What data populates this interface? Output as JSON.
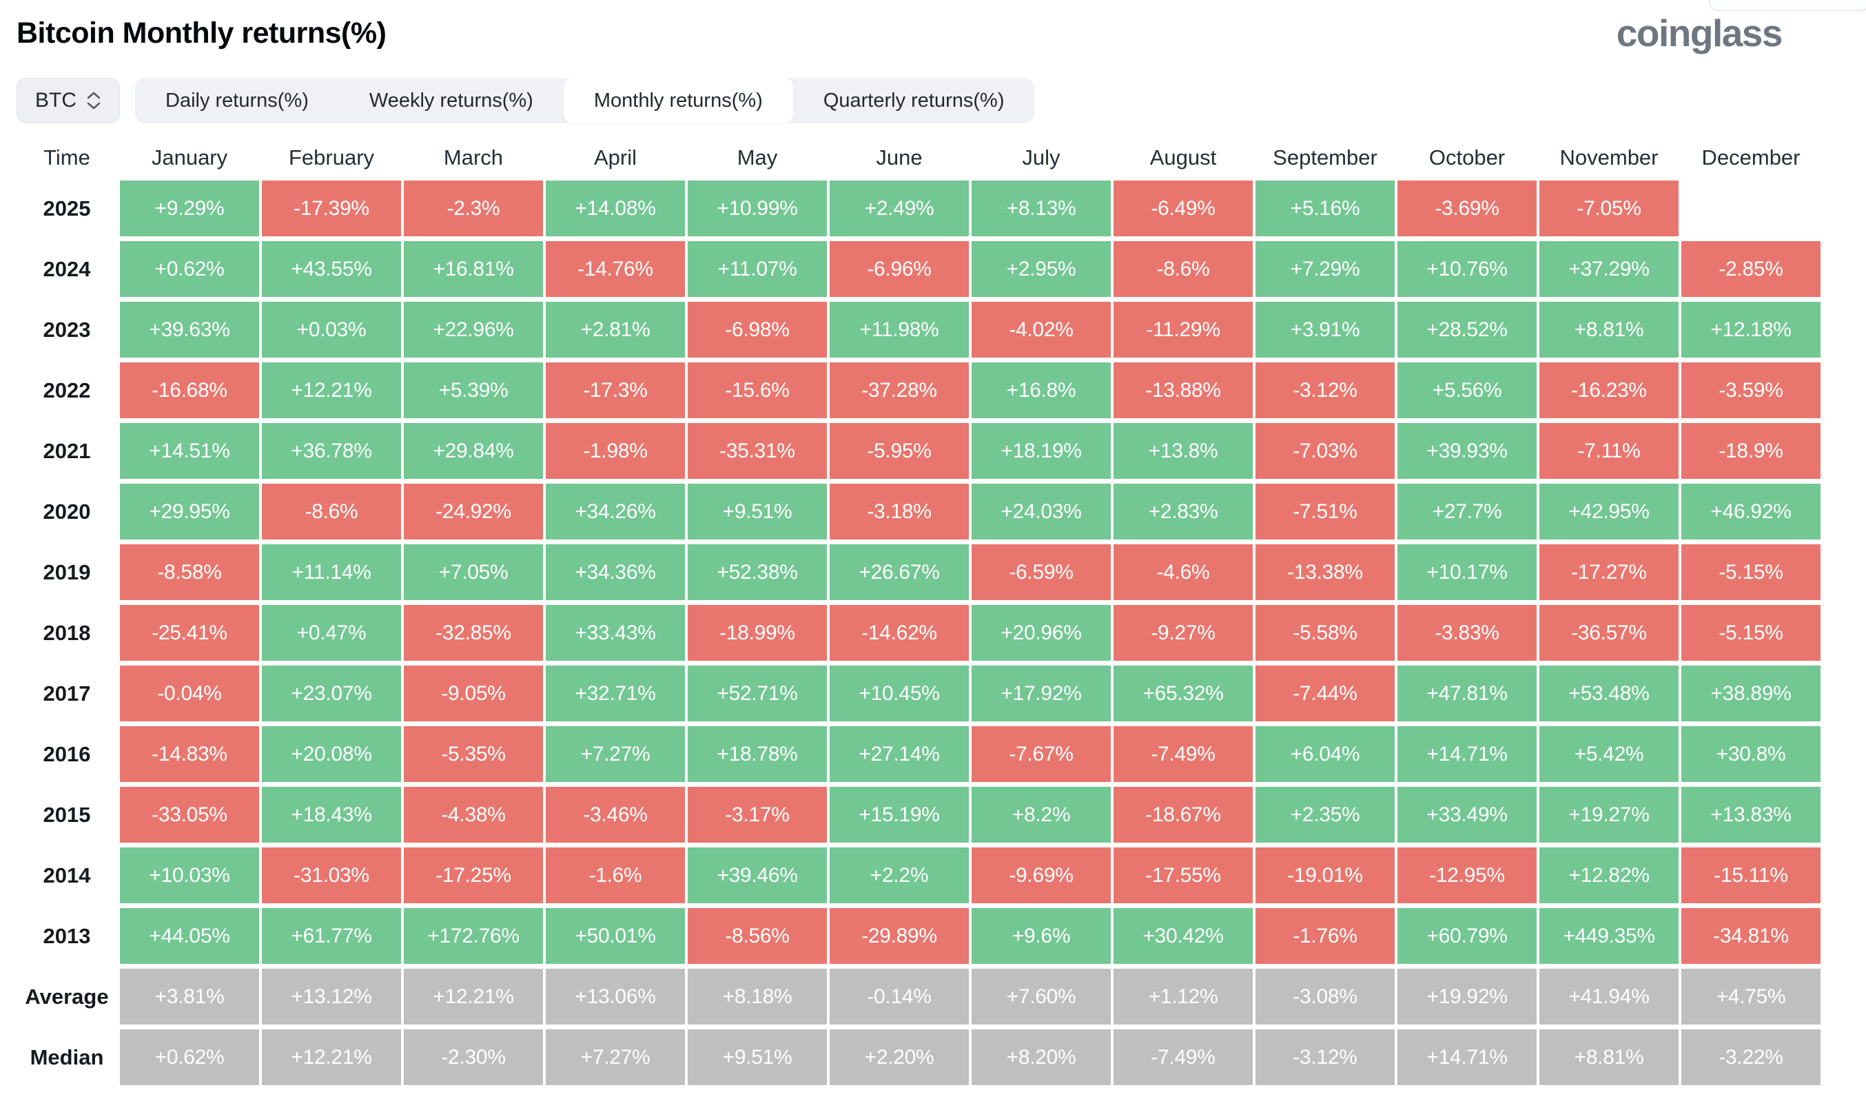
{
  "header": {
    "title": "Bitcoin Monthly returns(%)",
    "logo_text": "coinglass"
  },
  "controls": {
    "symbol": "BTC",
    "tabs": [
      {
        "label": "Daily returns(%)",
        "active": false
      },
      {
        "label": "Weekly returns(%)",
        "active": false
      },
      {
        "label": "Monthly returns(%)",
        "active": true
      },
      {
        "label": "Quarterly returns(%)",
        "active": false
      }
    ]
  },
  "colors": {
    "positive": "#72C792",
    "negative": "#E9766E",
    "summary": "#BFBFBF"
  },
  "chart_data": {
    "type": "table",
    "title": "Bitcoin Monthly returns(%)",
    "columns": [
      "Time",
      "January",
      "February",
      "March",
      "April",
      "May",
      "June",
      "July",
      "August",
      "September",
      "October",
      "November",
      "December"
    ],
    "rows": [
      {
        "label": "2025",
        "type": "year",
        "values": [
          "+9.29%",
          "-17.39%",
          "-2.3%",
          "+14.08%",
          "+10.99%",
          "+2.49%",
          "+8.13%",
          "-6.49%",
          "+5.16%",
          "-3.69%",
          "-7.05%",
          ""
        ]
      },
      {
        "label": "2024",
        "type": "year",
        "values": [
          "+0.62%",
          "+43.55%",
          "+16.81%",
          "-14.76%",
          "+11.07%",
          "-6.96%",
          "+2.95%",
          "-8.6%",
          "+7.29%",
          "+10.76%",
          "+37.29%",
          "-2.85%"
        ]
      },
      {
        "label": "2023",
        "type": "year",
        "values": [
          "+39.63%",
          "+0.03%",
          "+22.96%",
          "+2.81%",
          "-6.98%",
          "+11.98%",
          "-4.02%",
          "-11.29%",
          "+3.91%",
          "+28.52%",
          "+8.81%",
          "+12.18%"
        ]
      },
      {
        "label": "2022",
        "type": "year",
        "values": [
          "-16.68%",
          "+12.21%",
          "+5.39%",
          "-17.3%",
          "-15.6%",
          "-37.28%",
          "+16.8%",
          "-13.88%",
          "-3.12%",
          "+5.56%",
          "-16.23%",
          "-3.59%"
        ]
      },
      {
        "label": "2021",
        "type": "year",
        "values": [
          "+14.51%",
          "+36.78%",
          "+29.84%",
          "-1.98%",
          "-35.31%",
          "-5.95%",
          "+18.19%",
          "+13.8%",
          "-7.03%",
          "+39.93%",
          "-7.11%",
          "-18.9%"
        ]
      },
      {
        "label": "2020",
        "type": "year",
        "values": [
          "+29.95%",
          "-8.6%",
          "-24.92%",
          "+34.26%",
          "+9.51%",
          "-3.18%",
          "+24.03%",
          "+2.83%",
          "-7.51%",
          "+27.7%",
          "+42.95%",
          "+46.92%"
        ]
      },
      {
        "label": "2019",
        "type": "year",
        "values": [
          "-8.58%",
          "+11.14%",
          "+7.05%",
          "+34.36%",
          "+52.38%",
          "+26.67%",
          "-6.59%",
          "-4.6%",
          "-13.38%",
          "+10.17%",
          "-17.27%",
          "-5.15%"
        ]
      },
      {
        "label": "2018",
        "type": "year",
        "values": [
          "-25.41%",
          "+0.47%",
          "-32.85%",
          "+33.43%",
          "-18.99%",
          "-14.62%",
          "+20.96%",
          "-9.27%",
          "-5.58%",
          "-3.83%",
          "-36.57%",
          "-5.15%"
        ]
      },
      {
        "label": "2017",
        "type": "year",
        "values": [
          "-0.04%",
          "+23.07%",
          "-9.05%",
          "+32.71%",
          "+52.71%",
          "+10.45%",
          "+17.92%",
          "+65.32%",
          "-7.44%",
          "+47.81%",
          "+53.48%",
          "+38.89%"
        ]
      },
      {
        "label": "2016",
        "type": "year",
        "values": [
          "-14.83%",
          "+20.08%",
          "-5.35%",
          "+7.27%",
          "+18.78%",
          "+27.14%",
          "-7.67%",
          "-7.49%",
          "+6.04%",
          "+14.71%",
          "+5.42%",
          "+30.8%"
        ]
      },
      {
        "label": "2015",
        "type": "year",
        "values": [
          "-33.05%",
          "+18.43%",
          "-4.38%",
          "-3.46%",
          "-3.17%",
          "+15.19%",
          "+8.2%",
          "-18.67%",
          "+2.35%",
          "+33.49%",
          "+19.27%",
          "+13.83%"
        ]
      },
      {
        "label": "2014",
        "type": "year",
        "values": [
          "+10.03%",
          "-31.03%",
          "-17.25%",
          "-1.6%",
          "+39.46%",
          "+2.2%",
          "-9.69%",
          "-17.55%",
          "-19.01%",
          "-12.95%",
          "+12.82%",
          "-15.11%"
        ]
      },
      {
        "label": "2013",
        "type": "year",
        "values": [
          "+44.05%",
          "+61.77%",
          "+172.76%",
          "+50.01%",
          "-8.56%",
          "-29.89%",
          "+9.6%",
          "+30.42%",
          "-1.76%",
          "+60.79%",
          "+449.35%",
          "-34.81%"
        ]
      },
      {
        "label": "Average",
        "type": "summary",
        "values": [
          "+3.81%",
          "+13.12%",
          "+12.21%",
          "+13.06%",
          "+8.18%",
          "-0.14%",
          "+7.60%",
          "+1.12%",
          "-3.08%",
          "+19.92%",
          "+41.94%",
          "+4.75%"
        ]
      },
      {
        "label": "Median",
        "type": "summary",
        "values": [
          "+0.62%",
          "+12.21%",
          "-2.30%",
          "+7.27%",
          "+9.51%",
          "+2.20%",
          "+8.20%",
          "-7.49%",
          "-3.12%",
          "+14.71%",
          "+8.81%",
          "-3.22%"
        ]
      }
    ]
  }
}
